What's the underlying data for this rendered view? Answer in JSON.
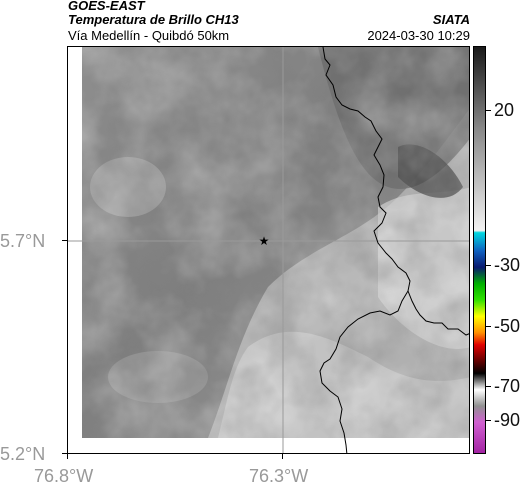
{
  "header": {
    "satellite": "GOES-EAST",
    "product": "Temperatura de Brillo CH13",
    "source": "SIATA",
    "region": "Vía Medellín - Quibdó 50km",
    "datetime": "2024-03-30 10:29"
  },
  "axes": {
    "lat_labels": [
      "5.7°N",
      "5.2°N"
    ],
    "lon_labels": [
      "76.8°W",
      "76.3°W"
    ]
  },
  "colorbar": {
    "labels": [
      "20",
      "-30",
      "-50",
      "-70",
      "-90"
    ]
  },
  "marker": {
    "symbol": "★",
    "name": "location-star"
  },
  "colors": {
    "gridline": "#9a9a9a",
    "coastline": "#000000",
    "axis_text": "#999999"
  }
}
